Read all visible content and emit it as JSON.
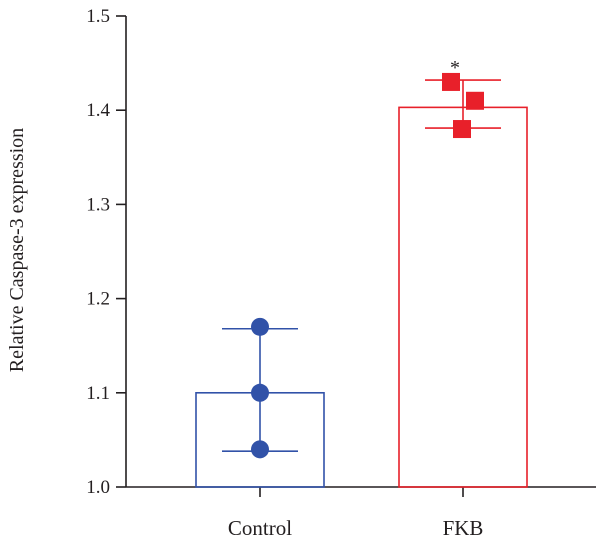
{
  "chart_data": {
    "type": "bar",
    "title": "",
    "xlabel": "",
    "ylabel": "Relative Caspase-3 expression",
    "ylim": [
      1.0,
      1.5
    ],
    "yticks": [
      "1.0",
      "1.1",
      "1.2",
      "1.3",
      "1.4",
      "1.5"
    ],
    "grid": false,
    "legend": "none",
    "categories": [
      "Control",
      "FKB"
    ],
    "bars": [
      {
        "category": "Control",
        "mean": 1.1,
        "error_low": 1.038,
        "error_high": 1.168,
        "points": [
          1.17,
          1.1,
          1.04
        ],
        "marker": "circle",
        "color": "#3152a8",
        "significance": ""
      },
      {
        "category": "FKB",
        "mean": 1.403,
        "error_low": 1.381,
        "error_high": 1.432,
        "points": [
          1.43,
          1.41,
          1.38
        ],
        "marker": "square",
        "color": "#e8202a",
        "significance": "*"
      }
    ]
  }
}
